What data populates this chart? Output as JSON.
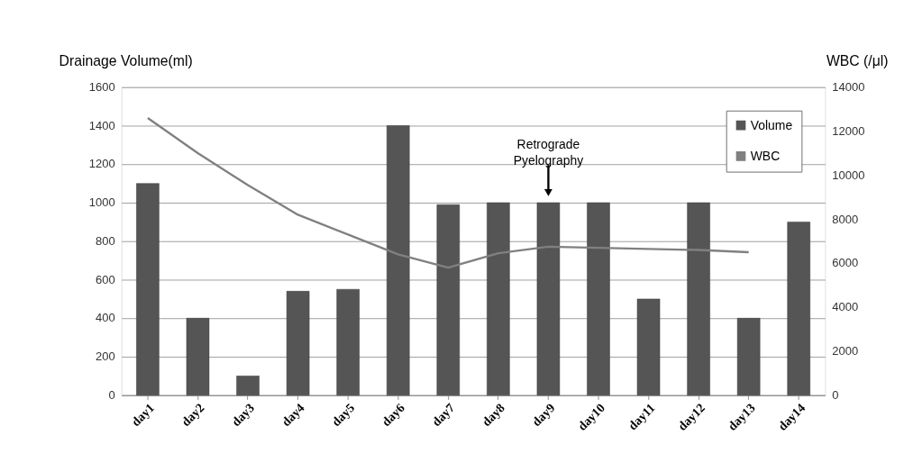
{
  "chart_data": {
    "type": "bar",
    "ylabel": "Drainage Volume(ml)",
    "y2label": "WBC (/μl)",
    "categories": [
      "day1",
      "day2",
      "day3",
      "day4",
      "day5",
      "day6",
      "day7",
      "day8",
      "day9",
      "day10",
      "day11",
      "day12",
      "day13",
      "day14"
    ],
    "series": [
      {
        "name": "Volume",
        "color": "#555555",
        "values": [
          1100,
          400,
          100,
          540,
          550,
          1400,
          990,
          1000,
          1000,
          1000,
          500,
          1000,
          400,
          900
        ]
      },
      {
        "name": "WBC",
        "type": "line",
        "axis": "y2",
        "color": "#808080",
        "values": [
          12600,
          11000,
          9550,
          8200,
          7300,
          6400,
          5800,
          6450,
          6750,
          6700,
          6650,
          6600,
          6500,
          null
        ]
      }
    ],
    "ylim": [
      0,
      1600
    ],
    "yticks": [
      0,
      200,
      400,
      600,
      800,
      1000,
      1200,
      1400,
      1600
    ],
    "y2lim": [
      0,
      14000
    ],
    "y2ticks": [
      0,
      2000,
      4000,
      6000,
      8000,
      10000,
      12000,
      14000
    ],
    "grid": "y",
    "legend": "top right",
    "annotations": [
      {
        "text": "Retrograde\nPyelography",
        "x": "day9",
        "y": 1000
      }
    ]
  }
}
